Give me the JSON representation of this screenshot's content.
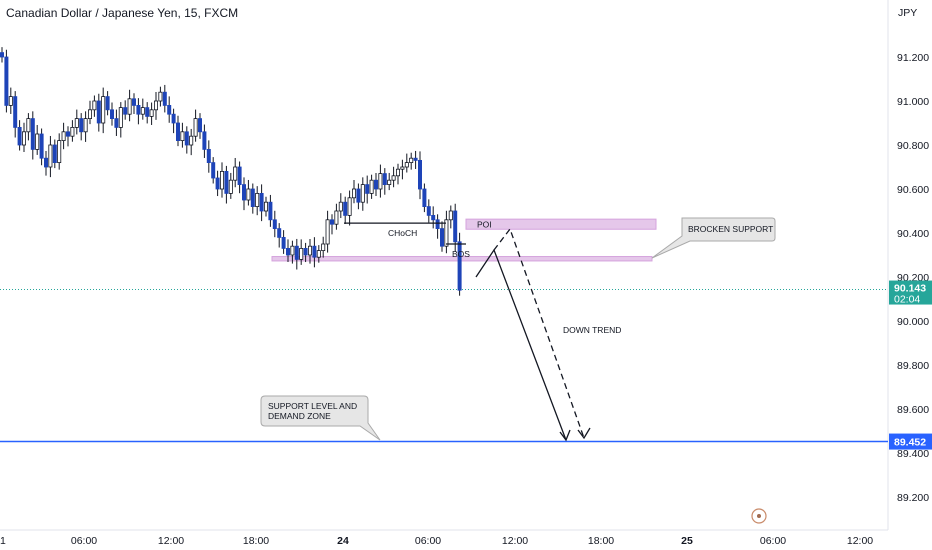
{
  "chart_data": {
    "type": "candlestick",
    "title": "Canadian Dollar / Japanese Yen, 15, FXCM",
    "currency": "JPY",
    "y_ticks": [
      "91.200",
      "91.000",
      "90.800",
      "90.600",
      "90.400",
      "90.200",
      "90.000",
      "89.800",
      "89.600",
      "89.400",
      "89.200"
    ],
    "x_ticks": [
      "1",
      "06:00",
      "12:00",
      "18:00",
      "24",
      "06:00",
      "12:00",
      "18:00",
      "25",
      "06:00",
      "12:00"
    ],
    "ylim": [
      89.05,
      91.45
    ],
    "last_price": {
      "value": "90.143",
      "countdown": "02:04"
    },
    "support_level": {
      "value": "89.452"
    },
    "candles_close": [
      91.2,
      90.98,
      91.02,
      90.88,
      90.8,
      90.86,
      90.92,
      90.78,
      90.85,
      90.74,
      90.7,
      90.8,
      90.72,
      90.82,
      90.86,
      90.84,
      90.88,
      90.92,
      90.86,
      90.92,
      90.96,
      91.0,
      90.9,
      91.02,
      90.96,
      90.92,
      90.88,
      90.97,
      90.94,
      91.01,
      90.98,
      90.94,
      90.97,
      90.93,
      90.96,
      91.0,
      91.04,
      90.98,
      90.94,
      90.9,
      90.82,
      90.86,
      90.8,
      90.84,
      90.92,
      90.86,
      90.78,
      90.72,
      90.65,
      90.6,
      90.68,
      90.58,
      90.64,
      90.7,
      90.62,
      90.55,
      90.6,
      90.52,
      90.58,
      90.5,
      90.54,
      90.46,
      90.42,
      90.38,
      90.33,
      90.3,
      90.34,
      90.28,
      90.33,
      90.3,
      90.34,
      90.29,
      90.32,
      90.35,
      90.46,
      90.44,
      90.5,
      90.54,
      90.48,
      90.56,
      90.6,
      90.54,
      90.62,
      90.58,
      90.64,
      90.6,
      90.67,
      90.62,
      90.64,
      90.66,
      90.69,
      90.7,
      90.72,
      90.74,
      90.73,
      90.6,
      90.52,
      90.48,
      90.46,
      90.42,
      90.34,
      90.46,
      90.5,
      90.36,
      90.14
    ],
    "annotations": {
      "choch": "CHoCH",
      "bos": "BOS",
      "poi": "POI",
      "brocken_support": "BROCKEN SUPPORT",
      "down_trend": "DOWN TREND",
      "support_line1": "SUPPORT LEVEL AND",
      "support_line2": "DEMAND ZONE"
    },
    "levels": {
      "choch": 90.445,
      "bos": 90.35,
      "poi_top": 90.463,
      "poi_bottom": 90.417,
      "support_zone_top": 90.293,
      "support_zone_bottom": 90.273
    },
    "colors": {
      "up": "#ffffff",
      "down": "#1e44b8",
      "wick": "#131722",
      "support_line": "#2962ff",
      "zone": "#e1bee7",
      "last_price_line": "#26a69a",
      "last_price_bg": "#26a69a",
      "support_bg": "#2962ff"
    }
  }
}
